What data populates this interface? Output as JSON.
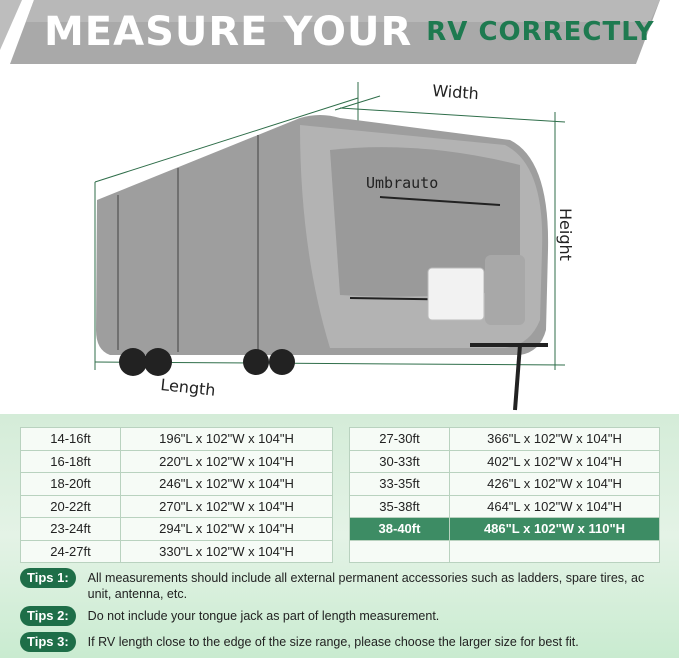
{
  "banner": {
    "title_white": "MEASURE YOUR",
    "title_green": "RV CORRECTLY"
  },
  "diagram": {
    "width_label": "Width",
    "height_label": "Height",
    "length_label": "Length",
    "brand": "Umbrauto"
  },
  "sizes_left": [
    {
      "size": "14-16ft",
      "dims": "196\"L x 102\"W x 104\"H"
    },
    {
      "size": "16-18ft",
      "dims": "220\"L x 102\"W x 104\"H"
    },
    {
      "size": "18-20ft",
      "dims": "246\"L x 102\"W x 104\"H"
    },
    {
      "size": "20-22ft",
      "dims": "270\"L x 102\"W x 104\"H"
    },
    {
      "size": "23-24ft",
      "dims": "294\"L x 102\"W x 104\"H"
    },
    {
      "size": "24-27ft",
      "dims": "330\"L x 102\"W x 104\"H"
    }
  ],
  "sizes_right": [
    {
      "size": "27-30ft",
      "dims": "366\"L x 102\"W x 104\"H"
    },
    {
      "size": "30-33ft",
      "dims": "402\"L x 102\"W x 104\"H"
    },
    {
      "size": "33-35ft",
      "dims": "426\"L x 102\"W x 104\"H"
    },
    {
      "size": "35-38ft",
      "dims": "464\"L x 102\"W x 104\"H"
    },
    {
      "size": "38-40ft",
      "dims": "486\"L x 102\"W x 110\"H",
      "highlighted": true
    }
  ],
  "tips": [
    {
      "label": "Tips 1:",
      "text": "All measurements should include all external permanent accessories such as ladders, spare tires, ac unit, antenna, etc."
    },
    {
      "label": "Tips 2:",
      "text": "Do not include your tongue jack as part of length measurement."
    },
    {
      "label": "Tips 3:",
      "text": "If RV length close to the edge of the size range, please choose the larger size for best fit."
    }
  ],
  "colors": {
    "accent": "#1e7a50",
    "highlight": "#3d8c64"
  }
}
